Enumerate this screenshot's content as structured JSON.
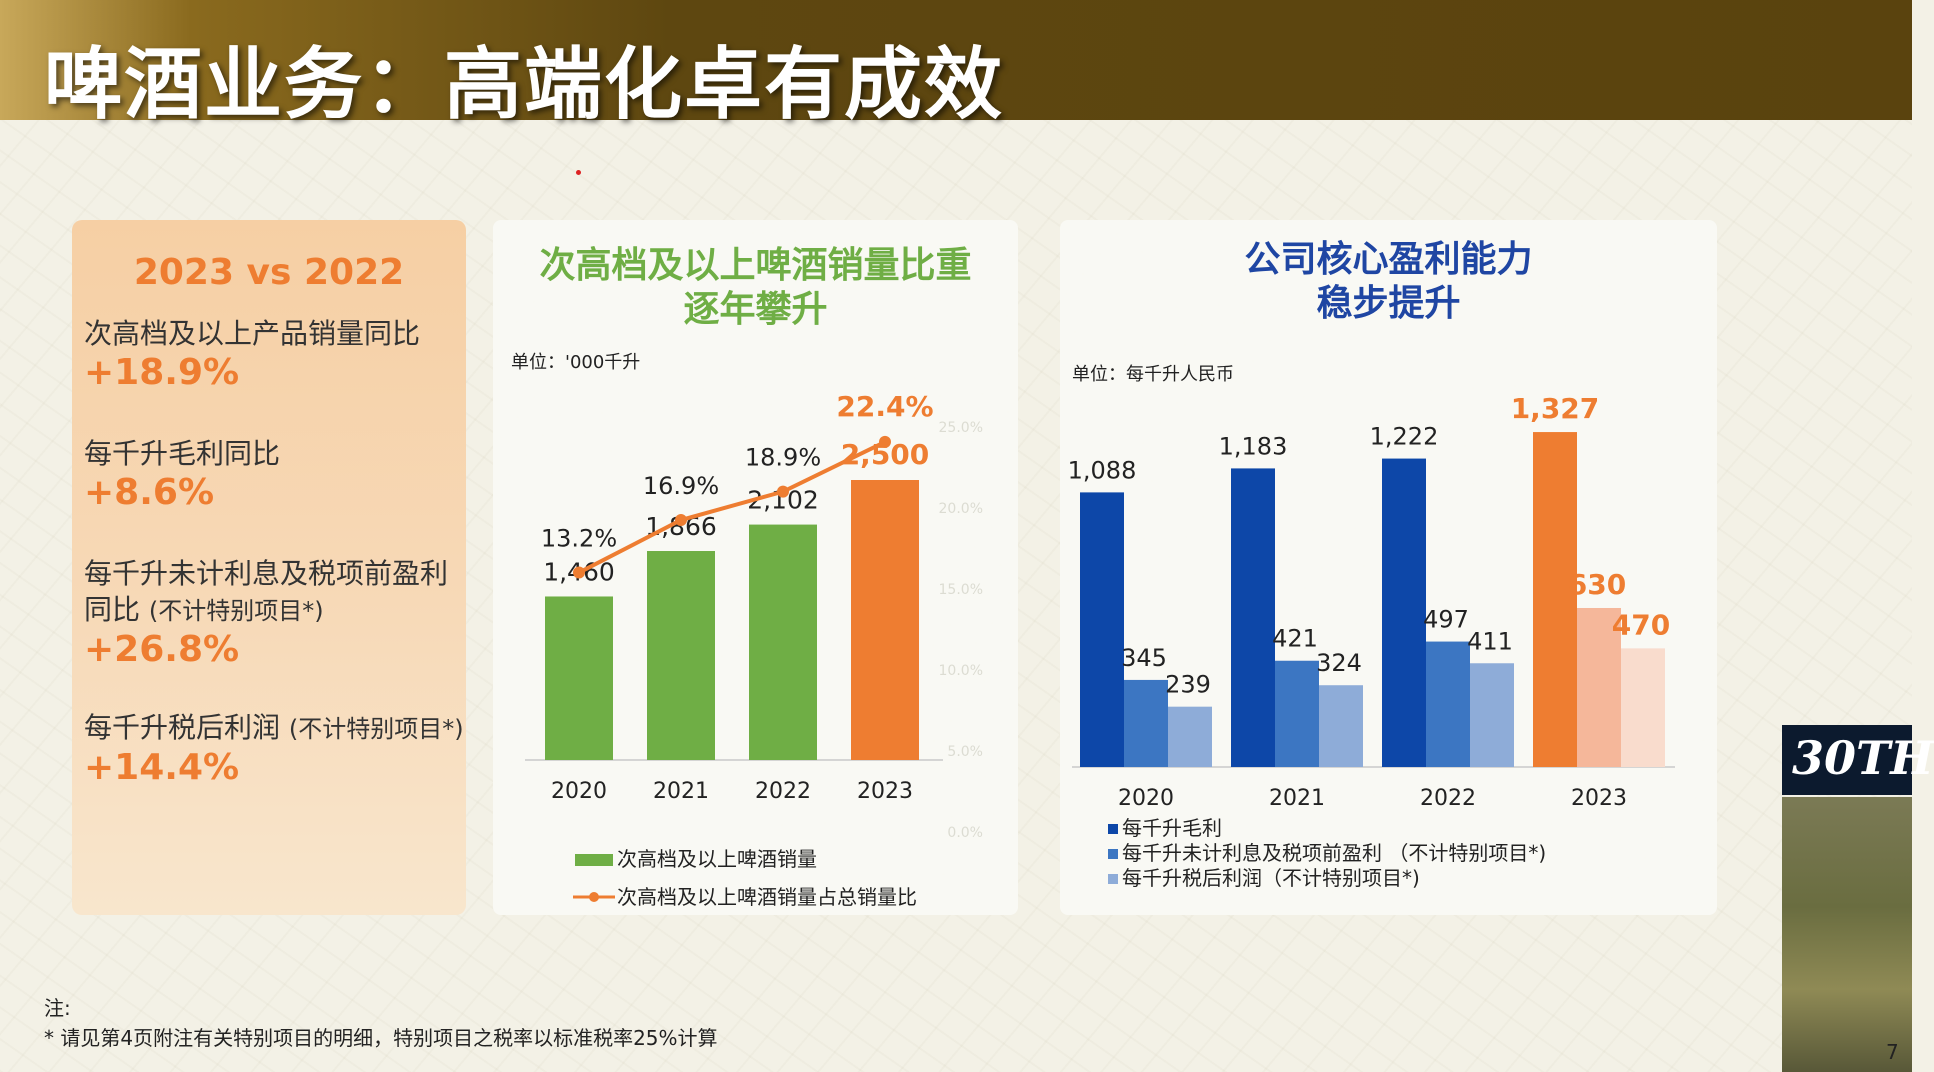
{
  "title": "啤酒业务：高端化卓有成效",
  "summary": {
    "heading": "2023 vs 2022",
    "metrics": [
      {
        "label": "次高档及以上产品销量同比",
        "sub": "",
        "value": "+18.9%"
      },
      {
        "label": "每千升毛利同比",
        "sub": "",
        "value": "+8.6%"
      },
      {
        "label": "每千升未计利息及税项前盈利",
        "label2": "同比",
        "sub": "(不计特别项目*)",
        "value": "+26.8%"
      },
      {
        "label": "每千升税后利润",
        "sub": "(不计特别项目*)",
        "value": "+14.4%"
      }
    ]
  },
  "colors": {
    "accent_orange": "#ee7d31",
    "green": "#6fae45",
    "navy": "#1f46a3",
    "blue1": "#0d47a8",
    "blue2": "#3c76c2",
    "blue3": "#8eacd8",
    "orange_light": "#f5b79a",
    "orange_lighter": "#f9dccd"
  },
  "chart_data": [
    {
      "type": "bar",
      "title": "次高档及以上啤酒销量比重逐年攀升",
      "title_lines": [
        "次高档及以上啤酒销量比重",
        "逐年攀升"
      ],
      "unit": "单位：'000千升",
      "categories": [
        "2020",
        "2021",
        "2022",
        "2023"
      ],
      "series": [
        {
          "name": "次高档及以上啤酒销量",
          "chart": "bar",
          "values": [
            1460,
            1866,
            2102,
            2500
          ],
          "labels": [
            "1,460",
            "1,866",
            "2,102",
            "2,500"
          ]
        },
        {
          "name": "次高档及以上啤酒销量占总销量比",
          "chart": "line",
          "values": [
            13.2,
            16.9,
            18.9,
            22.4
          ],
          "labels": [
            "13.2%",
            "16.9%",
            "18.9%",
            "22.4%"
          ]
        }
      ],
      "highlight_category": "2023",
      "secondary_axis": {
        "ticks": [
          "25.0%",
          "20.0%",
          "15.0%",
          "10.0%",
          "5.0%",
          "0.0%"
        ]
      }
    },
    {
      "type": "bar",
      "title": "公司核心盈利能力稳步提升",
      "title_lines": [
        "公司核心盈利能力",
        "稳步提升"
      ],
      "unit": "单位：每千升人民币",
      "categories": [
        "2020",
        "2021",
        "2022",
        "2023"
      ],
      "series": [
        {
          "name": "每千升毛利",
          "values": [
            1088,
            1183,
            1222,
            1327
          ],
          "labels": [
            "1,088",
            "1,183",
            "1,222",
            "1,327"
          ]
        },
        {
          "name": "每千升未计利息及税项前盈利 （不计特别项目*)",
          "values": [
            345,
            421,
            497,
            630
          ],
          "labels": [
            "345",
            "421",
            "497",
            "630"
          ]
        },
        {
          "name": "每千升税后利润（不计特别项目*)",
          "values": [
            239,
            324,
            411,
            470
          ],
          "labels": [
            "239",
            "324",
            "411",
            "470"
          ]
        }
      ],
      "highlight_category": "2023"
    }
  ],
  "note_label": "注:",
  "note": "* 请见第4页附注有关特别项目的明细，特别项目之税率以标准税率25%计算",
  "page_number": "7",
  "logo_text": "30TH"
}
